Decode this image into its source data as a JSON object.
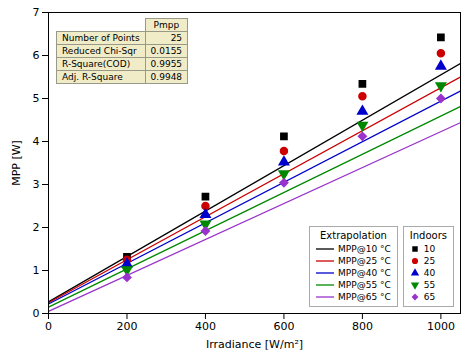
{
  "chart_data": {
    "type": "scatter",
    "xlabel": "Irradiance [W/m²]",
    "ylabel": "MPP [W]",
    "xlim": [
      0,
      1050
    ],
    "ylim": [
      0,
      7
    ],
    "xticks": [
      0,
      200,
      400,
      600,
      800,
      1000
    ],
    "yticks": [
      0,
      1,
      2,
      3,
      4,
      5,
      6,
      7
    ],
    "grid": false,
    "legend": "lower right",
    "series": [
      {
        "name": "MPP@10 °C",
        "type": "line",
        "color": "black",
        "legend_group": "Extrapolation",
        "x": [
          0,
          1050
        ],
        "values": [
          0.27,
          5.814
        ]
      },
      {
        "name": "MPP@25 °C",
        "type": "line",
        "color": "#cc0000",
        "legend_group": "Extrapolation",
        "x": [
          0,
          1050
        ],
        "values": [
          0.25,
          5.5
        ]
      },
      {
        "name": "MPP@40 °C",
        "type": "line",
        "color": "#0000cc",
        "legend_group": "Extrapolation",
        "x": [
          0,
          1050
        ],
        "values": [
          0.22,
          5.176
        ]
      },
      {
        "name": "MPP@55 °C",
        "type": "line",
        "color": "#008800",
        "legend_group": "Extrapolation",
        "x": [
          0,
          1050
        ],
        "values": [
          0.15,
          4.812
        ]
      },
      {
        "name": "MPP@65 °C",
        "type": "line",
        "color": "#9933cc",
        "legend_group": "Extrapolation",
        "x": [
          0,
          1050
        ],
        "values": [
          0.05,
          4.439
        ]
      },
      {
        "name": "10",
        "type": "scatter",
        "marker": "square",
        "color": "black",
        "legend_group": "Indoors",
        "x": [
          200,
          400,
          600,
          800,
          1000
        ],
        "values": [
          1.32,
          2.72,
          4.12,
          5.34,
          6.42
        ]
      },
      {
        "name": "25",
        "type": "scatter",
        "marker": "circle",
        "color": "#cc0000",
        "legend_group": "Indoors",
        "x": [
          200,
          400,
          600,
          800,
          1000
        ],
        "values": [
          1.25,
          2.5,
          3.78,
          5.05,
          6.05
        ]
      },
      {
        "name": "40",
        "type": "scatter",
        "marker": "triangle-up",
        "color": "#0000cc",
        "legend_group": "Indoors",
        "x": [
          200,
          400,
          600,
          800,
          1000
        ],
        "values": [
          1.15,
          2.3,
          3.52,
          4.7,
          5.75
        ]
      },
      {
        "name": "55",
        "type": "scatter",
        "marker": "triangle-down",
        "color": "#008800",
        "legend_group": "Indoors",
        "x": [
          200,
          400,
          600,
          800,
          1000
        ],
        "values": [
          1.02,
          2.08,
          3.25,
          4.38,
          5.3
        ]
      },
      {
        "name": "65",
        "type": "scatter",
        "marker": "diamond",
        "color": "#9933cc",
        "legend_group": "Indoors",
        "x": [
          200,
          400,
          600,
          800,
          1000
        ],
        "values": [
          0.84,
          1.92,
          3.04,
          4.12,
          5.0
        ]
      }
    ],
    "table": {
      "header": "Pmpp",
      "color": "#f0ecc8",
      "rows": [
        [
          "Number of Points",
          "25"
        ],
        [
          "Reduced Chi-Sqr",
          "0.0155"
        ],
        [
          "R-Square(COD)",
          "0.9955"
        ],
        [
          "Adj. R-Square",
          "0.9948"
        ]
      ]
    }
  }
}
